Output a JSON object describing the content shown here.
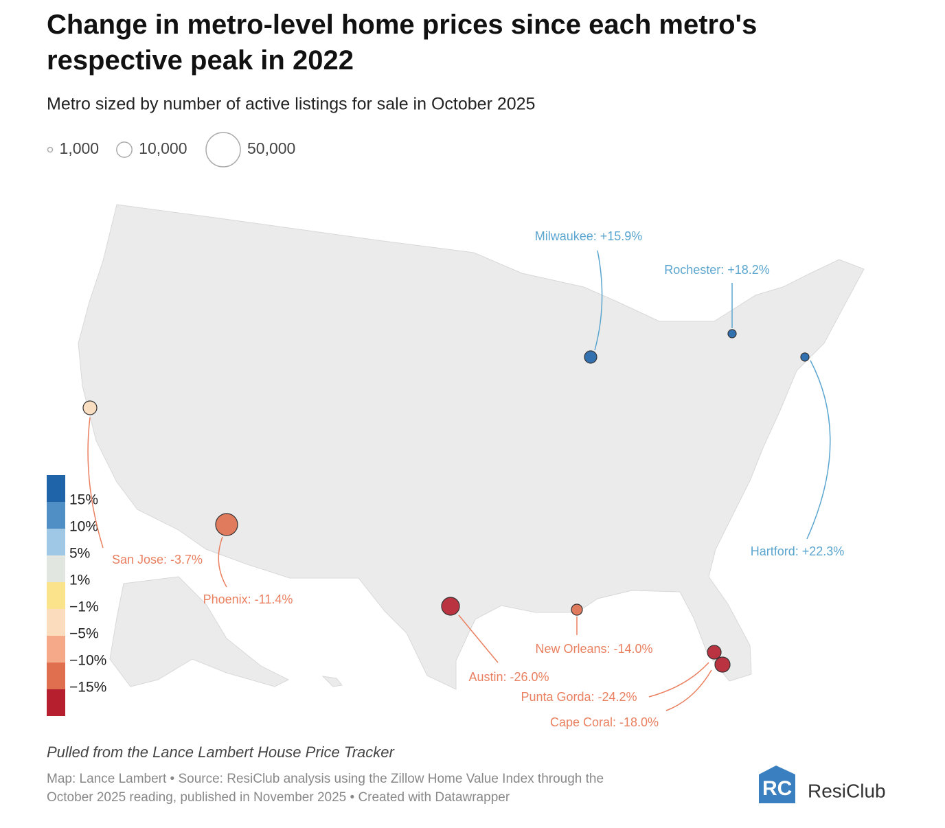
{
  "header": {
    "title": "Change in metro-level home prices since each metro's respective peak in 2022",
    "subtitle": "Metro sized by number of active listings for sale in October 2025"
  },
  "size_legend": [
    {
      "value": 1000,
      "label": "1,000"
    },
    {
      "value": 10000,
      "label": "10,000"
    },
    {
      "value": 50000,
      "label": "50,000"
    }
  ],
  "color_legend": {
    "colors": [
      "#1f63a8",
      "#4f8fc5",
      "#9ec8e5",
      "#e1e6e0",
      "#fae38b",
      "#fbdcbc",
      "#f5a988",
      "#e06f4f",
      "#b51f2e"
    ],
    "breaks": [
      {
        "value": 15,
        "label": "15%"
      },
      {
        "value": 10,
        "label": "10%"
      },
      {
        "value": 5,
        "label": "5%"
      },
      {
        "value": 1,
        "label": "1%"
      },
      {
        "value": -1,
        "label": "−1%"
      },
      {
        "value": -5,
        "label": "−5%"
      },
      {
        "value": -10,
        "label": "−10%"
      },
      {
        "value": -15,
        "label": "−15%"
      }
    ]
  },
  "metros": [
    {
      "label": "Milwaukee: +15.9%",
      "value": 15.9
    },
    {
      "label": "Rochester: +18.2%",
      "value": 18.2
    },
    {
      "label": "Hartford: +22.3%",
      "value": 22.3
    },
    {
      "label": "San Jose: -3.7%",
      "value": -3.7
    },
    {
      "label": "Phoenix: -11.4%",
      "value": -11.4
    },
    {
      "label": "Austin: -26.0%",
      "value": -26.0
    },
    {
      "label": "New Orleans: -14.0%",
      "value": -14.0
    },
    {
      "label": "Punta Gorda: -24.2%",
      "value": -24.2
    },
    {
      "label": "Cape Coral: -18.0%",
      "value": -18.0
    }
  ],
  "footer": {
    "note": "Pulled from the Lance Lambert House Price Tracker",
    "credit_line1": "Map: Lance Lambert • Source: ResiClub analysis using the Zillow Home Value Index through the",
    "credit_line2": "October 2025 reading, published in November 2025 • Created with Datawrapper",
    "logo": "ResiClub"
  }
}
